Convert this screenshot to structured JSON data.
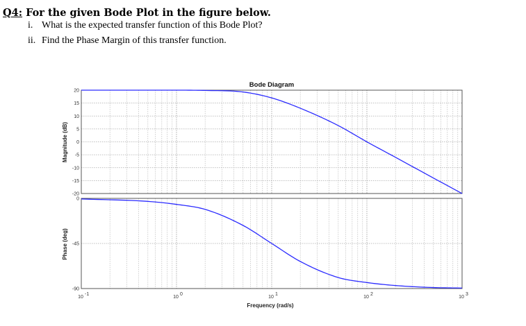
{
  "question": {
    "number": "Q4:",
    "title": " For the given Bode Plot in the figure below.",
    "items": [
      {
        "roman": "i.",
        "text": "What is the expected transfer function of this Bode Plot?"
      },
      {
        "roman": "ii.",
        "text": "Find the Phase Margin of this transfer function."
      }
    ]
  },
  "chart_data": [
    {
      "type": "line",
      "title": "Bode Diagram",
      "ylabel": "Magnitude (dB)",
      "xscale": "log",
      "xlim": [
        0.1,
        1000
      ],
      "ylim": [
        -20,
        20
      ],
      "yticks": [
        "20",
        "15",
        "10",
        "5",
        "0",
        "-5",
        "-10",
        "-15",
        "-20"
      ],
      "grid": true,
      "series": [
        {
          "color": "#2b2bff",
          "x": [
            0.1,
            1,
            2,
            5,
            10,
            20,
            50,
            100,
            200,
            500,
            1000
          ],
          "y": [
            20,
            20,
            19.9,
            19.3,
            17,
            13,
            6.3,
            0,
            -6,
            -14,
            -20
          ]
        }
      ]
    },
    {
      "type": "line",
      "xlabel": "Frequency  (rad/s)",
      "ylabel": "Phase (deg)",
      "xscale": "log",
      "xlim": [
        0.1,
        1000
      ],
      "ylim": [
        -90,
        0
      ],
      "yticks": [
        "0",
        "-45",
        "-90"
      ],
      "xticks": [
        "10",
        "10",
        "10",
        "10",
        "10"
      ],
      "xtick_exponents": [
        "-1",
        "0",
        "1",
        "2",
        "3"
      ],
      "grid": true,
      "series": [
        {
          "color": "#2b2bff",
          "x": [
            0.1,
            0.5,
            1,
            2,
            5,
            10,
            20,
            50,
            100,
            200,
            500,
            1000
          ],
          "y": [
            -0.6,
            -3,
            -6,
            -11,
            -27,
            -45,
            -63,
            -79,
            -84,
            -87,
            -89,
            -89.5
          ]
        }
      ]
    }
  ]
}
